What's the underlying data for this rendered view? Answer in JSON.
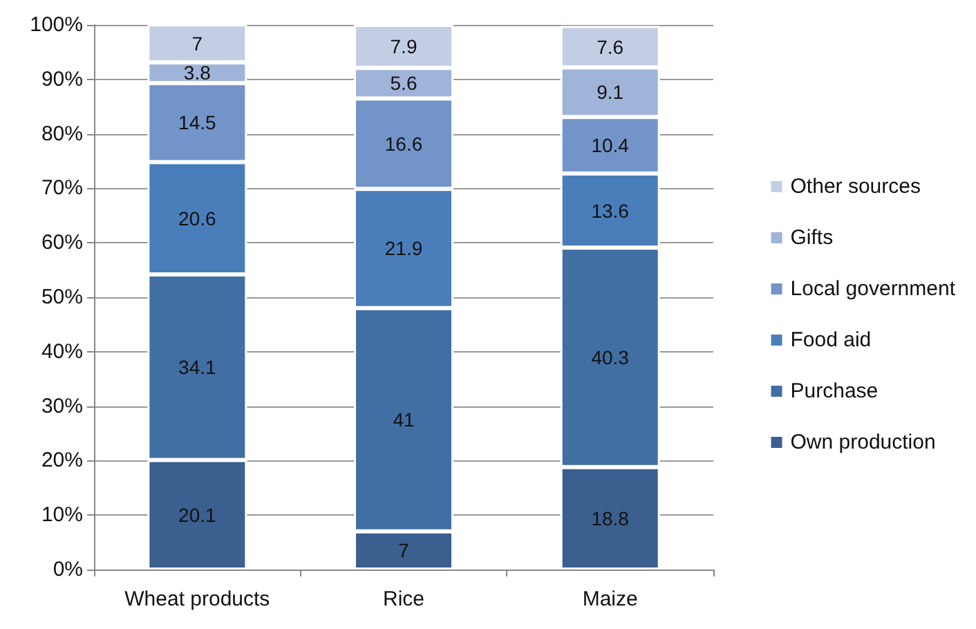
{
  "chart_data": {
    "type": "bar",
    "stacked": true,
    "categories": [
      "Wheat products",
      "Rice",
      "Maize"
    ],
    "series": [
      {
        "name": "Own production",
        "color": "#3b5f8e",
        "values": [
          20.1,
          7,
          18.8
        ]
      },
      {
        "name": "Purchase",
        "color": "#416fa3",
        "values": [
          34.1,
          41,
          40.3
        ]
      },
      {
        "name": "Food aid",
        "color": "#4a7ebb",
        "values": [
          20.6,
          21.9,
          13.6
        ]
      },
      {
        "name": "Local government",
        "color": "#7394c8",
        "values": [
          14.5,
          16.6,
          10.4
        ]
      },
      {
        "name": "Gifts",
        "color": "#a0b3d8",
        "values": [
          3.8,
          5.6,
          9.1
        ]
      },
      {
        "name": "Other sources",
        "color": "#c3cde4",
        "values": [
          7,
          7.9,
          7.6
        ]
      }
    ],
    "data_labels": true,
    "legend": "right",
    "grid": "y",
    "ylim": [
      0,
      100
    ],
    "yticks": [
      {
        "value": 0,
        "label": "0%"
      },
      {
        "value": 10,
        "label": "10%"
      },
      {
        "value": 20,
        "label": "20%"
      },
      {
        "value": 30,
        "label": "30%"
      },
      {
        "value": 40,
        "label": "40%"
      },
      {
        "value": 50,
        "label": "50%"
      },
      {
        "value": 60,
        "label": "60%"
      },
      {
        "value": 70,
        "label": "70%"
      },
      {
        "value": 80,
        "label": "80%"
      },
      {
        "value": 90,
        "label": "90%"
      },
      {
        "value": 100,
        "label": "100%"
      }
    ]
  }
}
